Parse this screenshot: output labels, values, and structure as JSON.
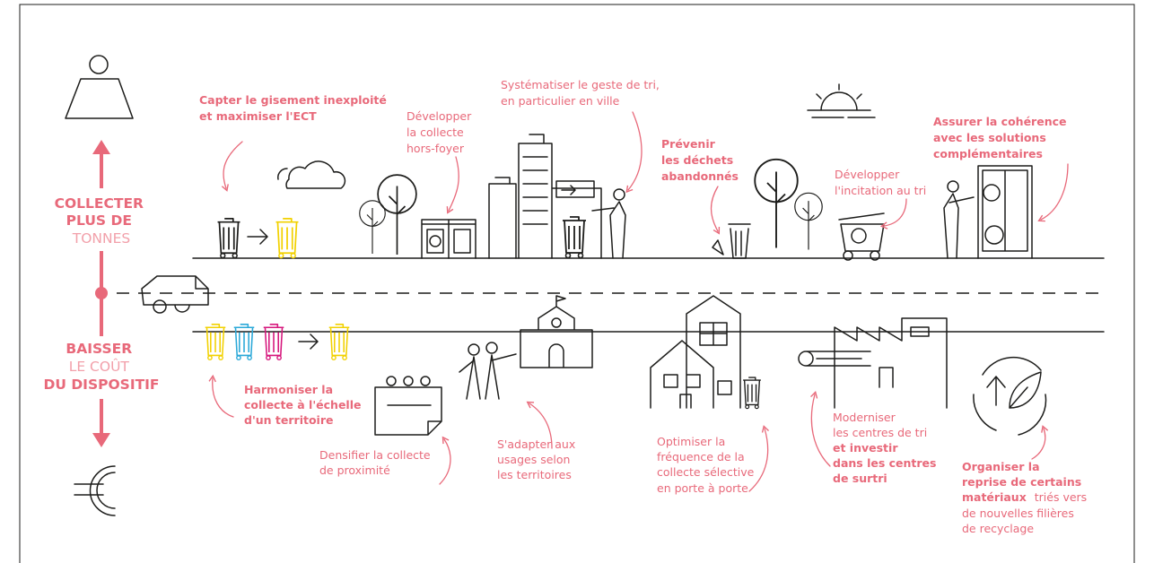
{
  "axis": {
    "top": [
      "COLLECTER",
      "PLUS DE",
      "TONNES"
    ],
    "bottom": [
      "BAISSER",
      "LE COÛT",
      "DU DISPOSITIF"
    ]
  },
  "actions": [
    {
      "lines": [
        "Capter le gisement inexploité",
        "et maximiser l'ECT"
      ]
    },
    {
      "lines": [
        "Développer",
        "la collecte",
        "hors-foyer"
      ]
    },
    {
      "lines": [
        "Systématiser le geste de tri,",
        "en particulier en ville"
      ]
    },
    {
      "lines": [
        "Prévenir",
        "les déchets",
        "abandonnés"
      ]
    },
    {
      "lines": [
        "Développer",
        "l'incitation au tri"
      ]
    },
    {
      "lines": [
        "Assurer la cohérence",
        "avec les solutions",
        "complémentaires"
      ]
    },
    {
      "lines": [
        "Harmoniser la",
        "collecte à l'échelle",
        "d'un territoire"
      ]
    },
    {
      "lines": [
        "Densifier la collecte",
        "de proximité"
      ]
    },
    {
      "lines": [
        "S'adapter aux",
        "usages selon",
        "les territoires"
      ]
    },
    {
      "lines": [
        "Optimiser la",
        "fréquence de la",
        "collecte sélective",
        "en porte à porte"
      ]
    },
    {
      "lines": [
        "Moderniser",
        "les centres de tri",
        "et investir",
        "dans les centres",
        "de surtri"
      ]
    },
    {
      "lines": [
        "Organiser la",
        "reprise de certains",
        "matériaux",
        "triés vers",
        "de nouvelles filières",
        "de recyclage"
      ]
    }
  ]
}
